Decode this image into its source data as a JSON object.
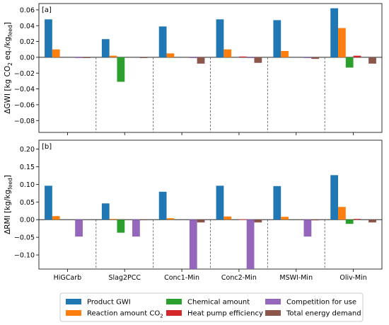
{
  "chart_data": [
    {
      "type": "bar",
      "panel_label": "[a]",
      "ylabel": "ΔGWI [kg CO",
      "ylabel_unit_parts": [
        "ΔGWI [kg CO",
        "2",
        " eq./kg",
        "feed",
        "]"
      ],
      "categories": [
        "HiGCarb",
        "Slag2PCC",
        "Conc1-Min",
        "Conc2-Min",
        "MSWI-Min",
        "Oliv-Min"
      ],
      "ylim": [
        -0.095,
        0.068
      ],
      "yticks": [
        -0.08,
        -0.06,
        -0.04,
        -0.02,
        0.0,
        0.02,
        0.04,
        0.06
      ],
      "ytick_labels": [
        "−0.08",
        "−0.06",
        "−0.04",
        "−0.02",
        "0.00",
        "0.02",
        "0.04",
        "0.06"
      ],
      "grid": false,
      "series": [
        {
          "name": "Product GWI",
          "values": [
            0.048,
            0.023,
            0.039,
            0.048,
            0.047,
            0.062
          ]
        },
        {
          "name": "Reaction amount CO2",
          "values": [
            0.01,
            0.002,
            0.005,
            0.01,
            0.008,
            0.037
          ]
        },
        {
          "name": "Chemical amount",
          "values": [
            0.0,
            -0.031,
            0.0,
            0.0,
            0.0,
            -0.013
          ]
        },
        {
          "name": "Heat pump efficiency",
          "values": [
            0.0,
            0.0,
            0.0,
            0.001,
            0.0,
            0.002
          ]
        },
        {
          "name": "Competition for use",
          "values": [
            -0.001,
            0.0,
            -0.001,
            -0.001,
            -0.001,
            0.0
          ]
        },
        {
          "name": "Total energy demand",
          "values": [
            -0.001,
            -0.001,
            -0.008,
            -0.007,
            -0.002,
            -0.008
          ]
        }
      ]
    },
    {
      "type": "bar",
      "panel_label": "[b]",
      "ylabel": "ΔRMI [kg/kg",
      "ylabel_unit_parts": [
        "ΔRMI [kg/kg",
        "feed",
        "]"
      ],
      "categories": [
        "HiGCarb",
        "Slag2PCC",
        "Conc1-Min",
        "Conc2-Min",
        "MSWI-Min",
        "Oliv-Min"
      ],
      "ylim": [
        -0.14,
        0.225
      ],
      "yticks": [
        -0.1,
        -0.05,
        0.0,
        0.05,
        0.1,
        0.15,
        0.2
      ],
      "ytick_labels": [
        "−0.10",
        "−0.05",
        "0.00",
        "0.05",
        "0.10",
        "0.15",
        "0.20"
      ],
      "grid": false,
      "series": [
        {
          "name": "Product GWI",
          "values": [
            0.096,
            0.046,
            0.079,
            0.096,
            0.095,
            0.126
          ]
        },
        {
          "name": "Reaction amount CO2",
          "values": [
            0.01,
            0.002,
            0.004,
            0.009,
            0.008,
            0.036
          ]
        },
        {
          "name": "Chemical amount",
          "values": [
            0.0,
            -0.037,
            0.0,
            0.0,
            0.0,
            -0.012
          ]
        },
        {
          "name": "Heat pump efficiency",
          "values": [
            0.0,
            0.0,
            0.0,
            0.001,
            0.0,
            0.002
          ]
        },
        {
          "name": "Competition for use",
          "values": [
            -0.048,
            -0.048,
            -0.14,
            -0.14,
            -0.048,
            0.0
          ]
        },
        {
          "name": "Total energy demand",
          "values": [
            0.0,
            -0.001,
            -0.008,
            -0.008,
            -0.002,
            -0.008
          ]
        }
      ]
    }
  ],
  "legend": {
    "placement": "bottom-center",
    "entries": [
      {
        "label": "Product GWI",
        "color": "#1f77b4"
      },
      {
        "label": "Reaction amount CO",
        "sub": "2",
        "color": "#ff7f0e"
      },
      {
        "label": "Chemical amount",
        "color": "#2ca02c"
      },
      {
        "label": "Heat pump efficiency",
        "color": "#d62728"
      },
      {
        "label": "Competition for use",
        "color": "#9467bd"
      },
      {
        "label": "Total energy demand",
        "color": "#8c564b"
      }
    ]
  },
  "colors": [
    "#1f77b4",
    "#ff7f0e",
    "#2ca02c",
    "#d62728",
    "#9467bd",
    "#8c564b"
  ]
}
